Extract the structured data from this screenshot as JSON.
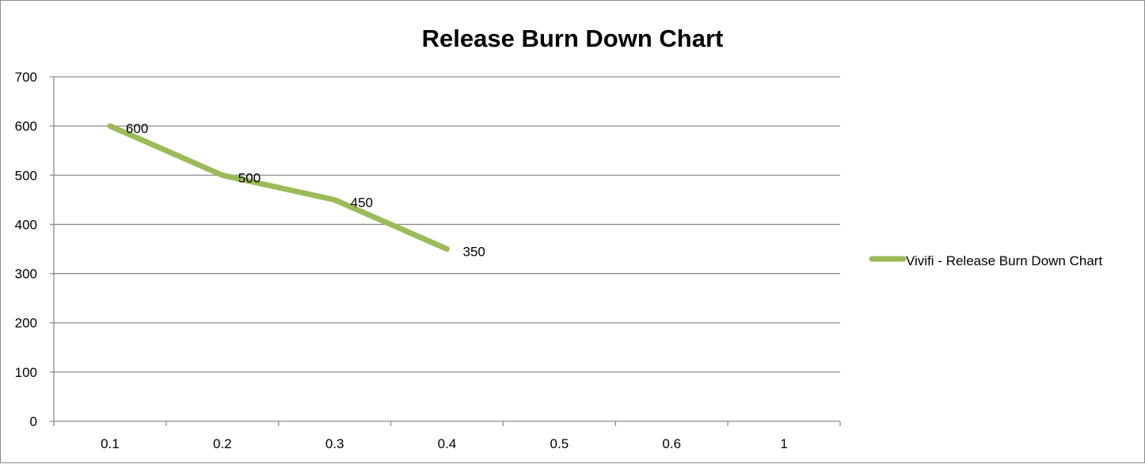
{
  "chart_data": {
    "type": "line",
    "title": "Release Burn Down Chart",
    "xlabel": "",
    "ylabel": "",
    "categories": [
      "0.1",
      "0.2",
      "0.3",
      "0.4",
      "0.5",
      "0.6",
      "1"
    ],
    "series": [
      {
        "name": "Vivifi - Release Burn Down Chart",
        "values": [
          600,
          500,
          450,
          350,
          null,
          null,
          null
        ],
        "data_labels": [
          "600",
          "500",
          "450",
          "350"
        ],
        "color": "#9bbb59"
      }
    ],
    "ylim": [
      0,
      700
    ],
    "yticks": [
      "0",
      "100",
      "200",
      "300",
      "400",
      "500",
      "600",
      "700"
    ],
    "grid": true,
    "legend": "right"
  }
}
